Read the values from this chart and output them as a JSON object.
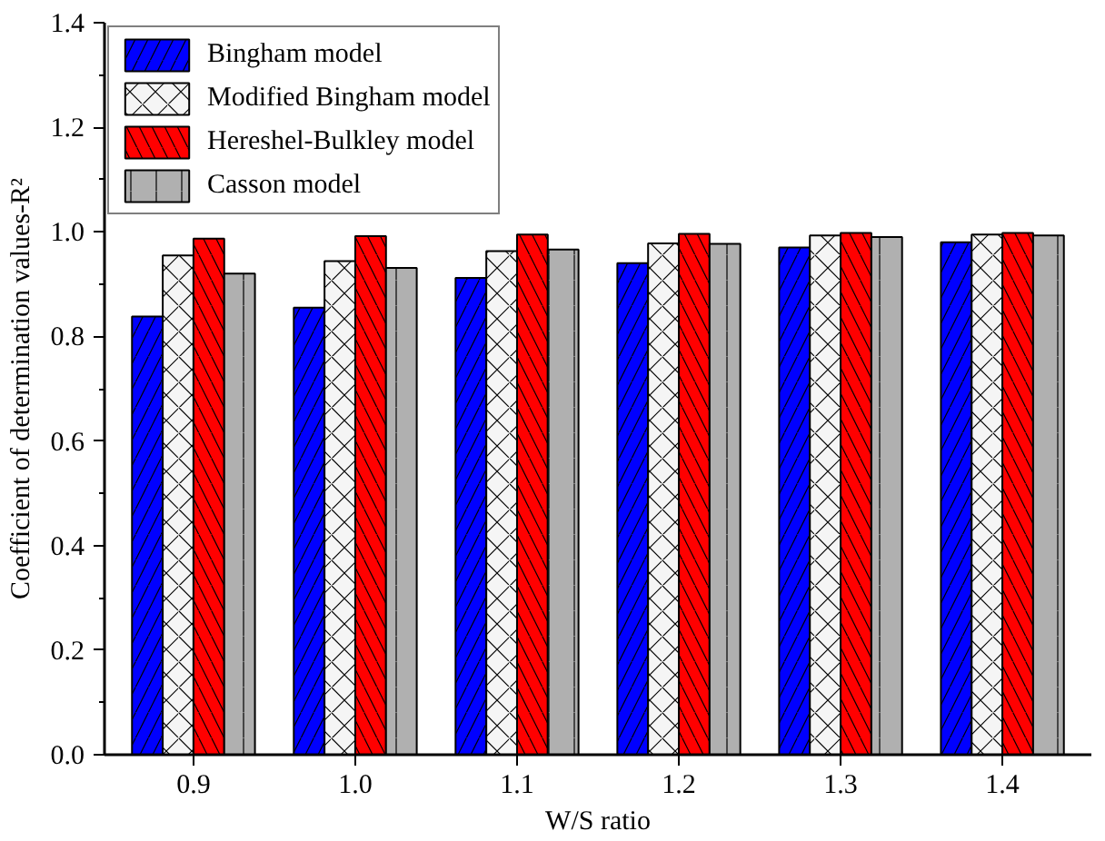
{
  "chart_data": {
    "type": "bar",
    "xlabel": "W/S ratio",
    "ylabel": "Coefficient of determination values-R²",
    "categories": [
      "0.9",
      "1.0",
      "1.1",
      "1.2",
      "1.3",
      "1.4"
    ],
    "series": [
      {
        "name": "Bingham model",
        "color": "#0000ff",
        "values": [
          0.838,
          0.855,
          0.912,
          0.94,
          0.97,
          0.98
        ]
      },
      {
        "name": "Modified Bingham model",
        "color": "#f5f5f5",
        "values": [
          0.955,
          0.944,
          0.963,
          0.978,
          0.993,
          0.995
        ]
      },
      {
        "name": "Hereshel-Bulkley model",
        "color": "#ff0000",
        "values": [
          0.987,
          0.992,
          0.995,
          0.996,
          0.998,
          0.998
        ]
      },
      {
        "name": "Casson model",
        "color": "#b0b0b0",
        "values": [
          0.92,
          0.931,
          0.966,
          0.977,
          0.99,
          0.993
        ]
      }
    ],
    "ylim": [
      0,
      1.4
    ],
    "yticks": [
      {
        "value": 0,
        "label": "0.0"
      },
      0.2,
      0.4,
      0.6,
      0.8,
      {
        "value": 1,
        "label": "1.0"
      },
      1.2,
      1.4
    ],
    "grid": false,
    "legend": "top left"
  }
}
